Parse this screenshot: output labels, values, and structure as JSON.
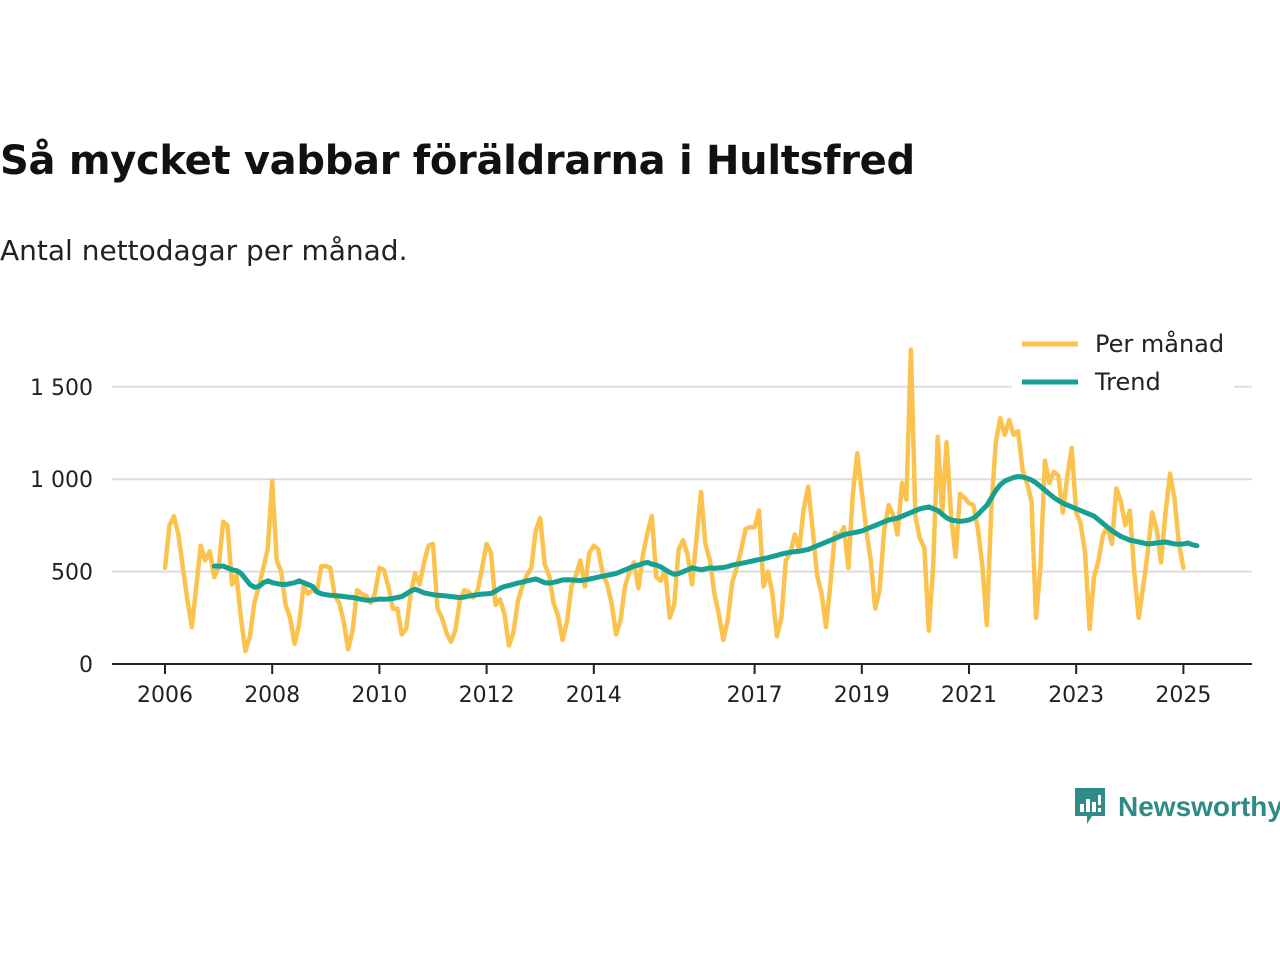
{
  "title": "Så mycket vabbar föräldrarna i Hultsfred",
  "subtitle": "Antal nettodagar per månad.",
  "brand": {
    "name": "Newsworthy"
  },
  "colors": {
    "monthly": "#fbc24e",
    "trend": "#17a092",
    "grid": "#dddddd",
    "axis": "#222222",
    "brand": "#2e8b87"
  },
  "chart_data": {
    "type": "line",
    "title": "Så mycket vabbar föräldrarna i Hultsfred",
    "subtitle": "Antal nettodagar per månad.",
    "xlabel": "",
    "ylabel": "",
    "xlim": [
      2006.0,
      2025.9
    ],
    "ylim": [
      0,
      1750
    ],
    "y_ticks": [
      0,
      500,
      1000,
      1500
    ],
    "y_tick_labels": [
      "0",
      "500",
      "1 000",
      "1 500"
    ],
    "x_ticks": [
      2006,
      2008,
      2010,
      2012,
      2014,
      2017,
      2019,
      2021,
      2023,
      2025
    ],
    "x_tick_labels": [
      "2006",
      "2008",
      "2010",
      "2012",
      "2014",
      "2017",
      "2019",
      "2021",
      "2023",
      "2025"
    ],
    "grid": true,
    "legend": {
      "position": "top-right",
      "entries": [
        "Per månad",
        "Trend"
      ]
    },
    "series": [
      {
        "name": "Per månad",
        "x_start": 2006.0,
        "step": 0.08333,
        "values": [
          520,
          750,
          800,
          700,
          520,
          350,
          200,
          420,
          640,
          560,
          610,
          470,
          520,
          770,
          750,
          430,
          480,
          250,
          70,
          150,
          330,
          420,
          520,
          620,
          990,
          560,
          500,
          320,
          250,
          110,
          210,
          420,
          380,
          400,
          390,
          530,
          530,
          520,
          370,
          330,
          230,
          80,
          180,
          400,
          380,
          370,
          330,
          380,
          520,
          510,
          420,
          300,
          300,
          160,
          190,
          380,
          490,
          430,
          550,
          640,
          650,
          300,
          250,
          170,
          120,
          180,
          340,
          400,
          390,
          360,
          400,
          520,
          650,
          600,
          320,
          350,
          270,
          100,
          170,
          340,
          420,
          480,
          520,
          720,
          790,
          540,
          480,
          330,
          260,
          130,
          230,
          420,
          480,
          560,
          420,
          600,
          640,
          620,
          490,
          430,
          330,
          160,
          240,
          420,
          500,
          550,
          410,
          590,
          710,
          800,
          470,
          450,
          510,
          250,
          320,
          620,
          670,
          590,
          430,
          680,
          930,
          650,
          560,
          380,
          270,
          130,
          240,
          440,
          520,
          620,
          730,
          740,
          740,
          830,
          420,
          500,
          380,
          150,
          250,
          560,
          600,
          700,
          620,
          840,
          960,
          730,
          480,
          380,
          200,
          440,
          710,
          690,
          740,
          520,
          920,
          1140,
          930,
          730,
          560,
          300,
          400,
          720,
          860,
          810,
          700,
          980,
          890,
          1700,
          800,
          680,
          630,
          180,
          530,
          1230,
          820,
          1200,
          800,
          580,
          920,
          900,
          870,
          860,
          730,
          530,
          210,
          840,
          1200,
          1330,
          1240,
          1320,
          1240,
          1260,
          1050,
          980,
          880,
          250,
          520,
          1100,
          980,
          1040,
          1020,
          820,
          1010,
          1170,
          820,
          760,
          600,
          190,
          470,
          560,
          700,
          740,
          650,
          950,
          880,
          750,
          830,
          500,
          250,
          420,
          600,
          820,
          730,
          550,
          820,
          1030,
          900,
          650,
          520
        ]
      },
      {
        "name": "Trend",
        "x_start": 2006.92,
        "step": 0.08333,
        "values": [
          530,
          530,
          530,
          520,
          510,
          505,
          490,
          460,
          430,
          415,
          420,
          440,
          450,
          440,
          435,
          430,
          430,
          435,
          440,
          450,
          440,
          430,
          420,
          390,
          380,
          375,
          372,
          370,
          368,
          365,
          362,
          360,
          355,
          350,
          345,
          345,
          348,
          352,
          350,
          352,
          355,
          360,
          365,
          380,
          395,
          405,
          395,
          385,
          380,
          375,
          372,
          370,
          368,
          365,
          362,
          360,
          362,
          368,
          372,
          375,
          378,
          380,
          382,
          395,
          410,
          420,
          425,
          432,
          438,
          443,
          450,
          455,
          460,
          450,
          440,
          438,
          442,
          448,
          455,
          456,
          455,
          453,
          452,
          455,
          460,
          465,
          470,
          475,
          480,
          485,
          490,
          500,
          510,
          520,
          530,
          535,
          545,
          550,
          540,
          535,
          525,
          510,
          495,
          485,
          490,
          500,
          510,
          520,
          515,
          510,
          515,
          520,
          518,
          520,
          522,
          528,
          535,
          540,
          545,
          550,
          555,
          560,
          565,
          570,
          575,
          582,
          588,
          595,
          600,
          605,
          608,
          610,
          615,
          620,
          630,
          640,
          650,
          660,
          670,
          680,
          690,
          700,
          705,
          710,
          715,
          720,
          730,
          740,
          750,
          760,
          770,
          780,
          785,
          790,
          800,
          810,
          820,
          830,
          840,
          845,
          850,
          840,
          830,
          810,
          790,
          780,
          775,
          772,
          775,
          780,
          790,
          810,
          835,
          860,
          900,
          940,
          970,
          990,
          1000,
          1010,
          1015,
          1012,
          1005,
          995,
          980,
          960,
          940,
          920,
          900,
          885,
          870,
          860,
          850,
          840,
          830,
          820,
          810,
          800,
          780,
          760,
          740,
          720,
          705,
          690,
          680,
          670,
          665,
          660,
          655,
          650,
          652,
          655,
          658,
          660,
          655,
          650,
          648,
          650,
          655,
          645,
          640
        ]
      }
    ]
  }
}
